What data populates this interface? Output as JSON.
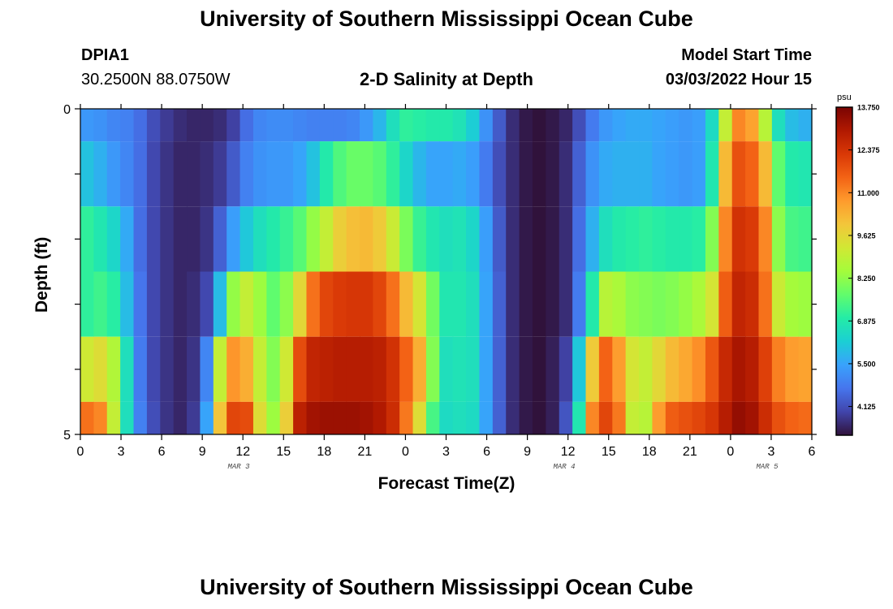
{
  "header": {
    "title": "University of Southern Mississippi Ocean Cube",
    "station": "DPIA1",
    "coords": "30.2500N  88.0750W",
    "plot_title": "2-D Salinity at Depth",
    "model_start_label": "Model Start Time",
    "model_start_value": "03/03/2022 Hour 15"
  },
  "footer": {
    "title_repeat": "University of Southern Mississippi Ocean Cube"
  },
  "colors": {
    "colormap": [
      "#30123b",
      "#4145ab",
      "#4675ed",
      "#39a2fc",
      "#1bcfd4",
      "#24eca6",
      "#61fc6c",
      "#a4fc3b",
      "#d1e834",
      "#f3c63a",
      "#fe9b2d",
      "#f36315",
      "#d93806",
      "#b11901",
      "#7a0403"
    ]
  },
  "chart_data": {
    "type": "heatmap",
    "title": "2-D Salinity at Depth",
    "xlabel": "Forecast Time(Z)",
    "ylabel": "Depth (ft)",
    "x_tick_labels": [
      "0",
      "3",
      "6",
      "9",
      "12",
      "15",
      "18",
      "21",
      "0",
      "3",
      "6",
      "9",
      "12",
      "15",
      "18",
      "21",
      "0",
      "3",
      "6"
    ],
    "x_range_hours": [
      0,
      54
    ],
    "y_tick_labels": [
      "0",
      "5"
    ],
    "ylim": [
      0,
      5
    ],
    "date_labels": [
      {
        "text": "MAR 3",
        "hour": 12
      },
      {
        "text": "MAR 4",
        "hour": 36
      },
      {
        "text": "MAR 5",
        "hour": 51
      }
    ],
    "colorbar": {
      "unit": "psu",
      "min": 3.2,
      "max": 13.75,
      "ticks": [
        "13.750",
        "12.375",
        "11.000",
        "9.625",
        "8.250",
        "6.875",
        "5.500",
        "4.125"
      ]
    },
    "depth_layers": [
      {
        "depth_range": [
          0,
          0.5
        ],
        "hour_values": [
          5.3,
          5.2,
          5.0,
          4.9,
          4.6,
          4.1,
          3.8,
          3.6,
          3.5,
          3.5,
          3.6,
          3.9,
          4.6,
          5.0,
          5.1,
          5.1,
          5.0,
          4.9,
          4.9,
          4.9,
          5.0,
          5.3,
          5.8,
          6.6,
          7.1,
          7.0,
          6.9,
          6.9,
          6.7,
          6.2,
          5.2,
          4.3,
          3.6,
          3.3,
          3.2,
          3.3,
          3.5,
          4.1,
          4.8,
          5.3,
          5.5,
          5.6,
          5.6,
          5.5,
          5.4,
          5.3,
          5.4,
          6.5,
          9.0,
          11.0,
          10.6,
          8.8,
          6.6,
          5.9,
          5.7
        ]
      },
      {
        "depth_range": [
          0.5,
          1.5
        ],
        "hour_values": [
          6.0,
          5.7,
          5.3,
          5.0,
          4.6,
          4.0,
          3.7,
          3.5,
          3.5,
          3.6,
          3.8,
          4.3,
          4.9,
          5.2,
          5.3,
          5.3,
          5.5,
          6.0,
          6.9,
          7.5,
          7.8,
          7.8,
          7.6,
          7.1,
          6.4,
          5.8,
          5.5,
          5.5,
          5.6,
          5.4,
          4.8,
          4.1,
          3.6,
          3.3,
          3.2,
          3.3,
          3.6,
          4.4,
          5.2,
          5.6,
          5.7,
          5.7,
          5.7,
          5.5,
          5.4,
          5.3,
          5.4,
          6.8,
          10.2,
          11.8,
          11.5,
          10.2,
          7.7,
          6.9,
          6.8
        ]
      },
      {
        "depth_range": [
          1.5,
          2.5
        ],
        "hour_values": [
          7.1,
          6.8,
          6.4,
          5.6,
          4.6,
          4.0,
          3.7,
          3.5,
          3.5,
          3.7,
          4.4,
          5.4,
          6.1,
          6.6,
          6.9,
          7.2,
          7.6,
          8.3,
          9.0,
          9.8,
          10.1,
          10.2,
          9.9,
          9.1,
          8.0,
          7.2,
          6.8,
          6.6,
          6.7,
          6.4,
          5.4,
          4.3,
          3.6,
          3.3,
          3.2,
          3.3,
          3.6,
          4.6,
          5.7,
          6.6,
          6.9,
          7.0,
          7.1,
          7.0,
          6.9,
          6.9,
          7.0,
          8.1,
          11.0,
          12.4,
          12.2,
          11.0,
          8.2,
          7.4,
          7.3
        ]
      },
      {
        "depth_range": [
          2.5,
          3.5
        ],
        "hour_values": [
          7.1,
          7.3,
          7.0,
          5.9,
          4.7,
          4.0,
          3.7,
          3.5,
          3.6,
          4.0,
          5.9,
          8.3,
          9.0,
          8.4,
          7.7,
          8.2,
          9.6,
          11.3,
          12.0,
          12.2,
          12.3,
          12.3,
          12.0,
          11.3,
          10.2,
          9.3,
          7.9,
          6.8,
          6.8,
          6.6,
          5.5,
          4.4,
          3.6,
          3.3,
          3.2,
          3.3,
          3.6,
          4.8,
          6.9,
          8.8,
          8.6,
          8.2,
          8.1,
          8.0,
          8.1,
          8.3,
          8.6,
          9.3,
          11.6,
          12.7,
          12.5,
          11.3,
          9.1,
          8.5,
          8.4
        ]
      },
      {
        "depth_range": [
          3.5,
          4.5
        ],
        "hour_values": [
          9.2,
          9.5,
          8.7,
          6.6,
          4.8,
          4.0,
          3.7,
          3.5,
          3.7,
          5.0,
          9.0,
          10.8,
          10.4,
          9.0,
          8.1,
          9.2,
          11.9,
          12.7,
          12.8,
          12.9,
          12.9,
          12.9,
          12.8,
          12.4,
          11.5,
          10.4,
          8.1,
          6.6,
          6.7,
          6.6,
          5.5,
          4.4,
          3.6,
          3.3,
          3.2,
          3.4,
          3.9,
          6.1,
          9.9,
          11.5,
          10.7,
          9.3,
          9.0,
          9.6,
          10.2,
          10.5,
          10.9,
          11.7,
          12.6,
          13.1,
          12.9,
          12.1,
          11.1,
          10.7,
          10.6
        ]
      },
      {
        "depth_range": [
          4.5,
          5.0
        ],
        "hour_values": [
          11.3,
          11.0,
          9.0,
          6.6,
          4.9,
          4.1,
          3.7,
          3.5,
          3.8,
          5.5,
          10.0,
          12.0,
          11.9,
          9.5,
          8.4,
          9.8,
          12.8,
          13.2,
          13.3,
          13.3,
          13.3,
          13.2,
          13.0,
          12.5,
          11.2,
          9.5,
          7.4,
          6.5,
          6.6,
          6.5,
          5.5,
          4.4,
          3.6,
          3.3,
          3.2,
          3.4,
          4.2,
          6.8,
          11.0,
          12.0,
          11.2,
          9.0,
          8.8,
          10.7,
          11.6,
          11.8,
          12.0,
          12.3,
          12.9,
          13.4,
          13.2,
          12.5,
          11.8,
          11.5,
          11.4
        ]
      }
    ]
  }
}
